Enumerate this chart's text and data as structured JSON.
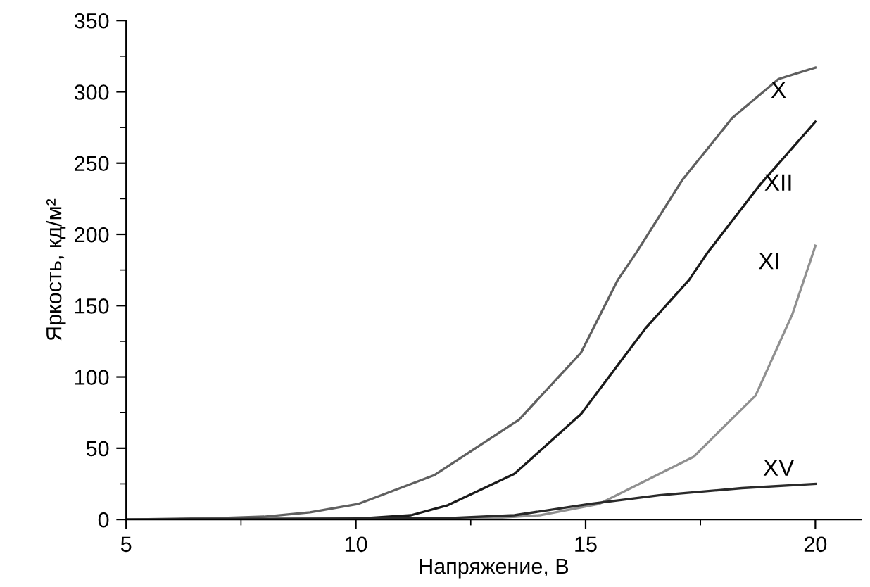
{
  "chart_data": {
    "type": "line",
    "xlabel": "Напряжение, В",
    "ylabel": "Яркость, кд/м²",
    "xlim": [
      5,
      21
    ],
    "xticks": [
      5,
      10,
      15,
      20
    ],
    "ylim": [
      0,
      350
    ],
    "yticks": [
      0,
      50,
      100,
      150,
      200,
      250,
      300,
      350
    ],
    "grid": false,
    "legend": false,
    "marker": "none",
    "line_style": "solid",
    "series": [
      {
        "name": "X",
        "color": "#606060",
        "x": [
          5,
          7,
          8,
          9,
          10.06,
          11.7,
          13.55,
          14.9,
          15.7,
          16.1,
          17.1,
          18.2,
          19.2,
          20
        ],
        "values": [
          0,
          1,
          2,
          5,
          11,
          31,
          70,
          117,
          168,
          187,
          238,
          282,
          309,
          317
        ]
      },
      {
        "name": "XII",
        "color": "#1a1a1a",
        "x": [
          5,
          10,
          11.2,
          12,
          13.45,
          14.9,
          16.3,
          17.25,
          17.65,
          18.8,
          20
        ],
        "values": [
          0,
          0.5,
          3,
          10,
          32,
          74,
          134,
          168,
          187,
          235,
          279
        ]
      },
      {
        "name": "XI",
        "color": "#909090",
        "x": [
          5,
          13,
          14,
          15.3,
          17.35,
          18.7,
          19.5,
          19.95,
          20
        ],
        "values": [
          0,
          1,
          3,
          11,
          44,
          87,
          144,
          187,
          192
        ]
      },
      {
        "name": "XV",
        "color": "#2a2a2a",
        "x": [
          5,
          12,
          13.45,
          15.1,
          16.6,
          18.4,
          20
        ],
        "values": [
          0,
          1,
          3,
          11,
          17,
          22,
          25
        ]
      }
    ]
  }
}
